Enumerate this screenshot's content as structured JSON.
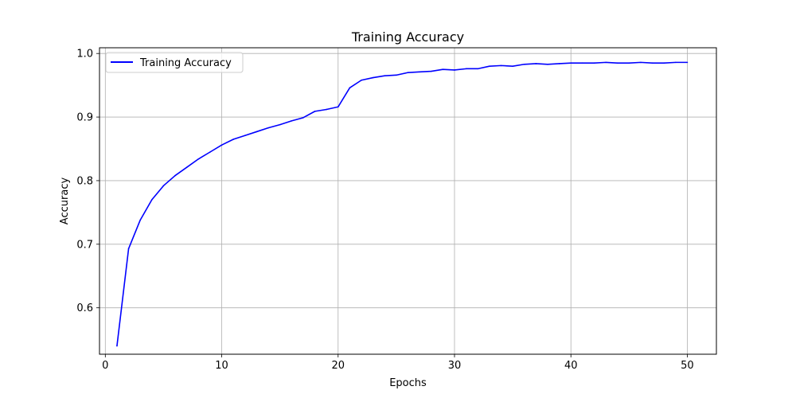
{
  "chart_data": {
    "type": "line",
    "title": "Training Accuracy",
    "xlabel": "Epochs",
    "ylabel": "Accuracy",
    "xlim": [
      -0.5,
      52.5
    ],
    "ylim": [
      0.527,
      1.009
    ],
    "xticks": [
      0,
      10,
      20,
      30,
      40,
      50
    ],
    "xtick_labels": [
      "0",
      "10",
      "20",
      "30",
      "40",
      "50"
    ],
    "yticks": [
      0.6,
      0.7,
      0.8,
      0.9,
      1.0
    ],
    "ytick_labels": [
      "0.6",
      "0.7",
      "0.8",
      "0.9",
      "1.0"
    ],
    "grid": true,
    "legend_position": "top-left",
    "series": [
      {
        "name": "Training Accuracy",
        "color": "#0000ff",
        "x": [
          1,
          2,
          3,
          4,
          5,
          6,
          7,
          8,
          9,
          10,
          11,
          12,
          13,
          14,
          15,
          16,
          17,
          18,
          19,
          20,
          21,
          22,
          23,
          24,
          25,
          26,
          27,
          28,
          29,
          30,
          31,
          32,
          33,
          34,
          35,
          36,
          37,
          38,
          39,
          40,
          41,
          42,
          43,
          44,
          45,
          46,
          47,
          48,
          49,
          50
        ],
        "y": [
          0.54,
          0.693,
          0.738,
          0.77,
          0.792,
          0.808,
          0.821,
          0.834,
          0.845,
          0.856,
          0.865,
          0.871,
          0.877,
          0.883,
          0.888,
          0.894,
          0.899,
          0.909,
          0.912,
          0.916,
          0.946,
          0.958,
          0.962,
          0.965,
          0.966,
          0.97,
          0.971,
          0.972,
          0.975,
          0.974,
          0.976,
          0.976,
          0.98,
          0.981,
          0.98,
          0.983,
          0.984,
          0.983,
          0.984,
          0.985,
          0.985,
          0.985,
          0.986,
          0.985,
          0.985,
          0.986,
          0.985,
          0.985,
          0.986,
          0.986
        ]
      }
    ]
  }
}
